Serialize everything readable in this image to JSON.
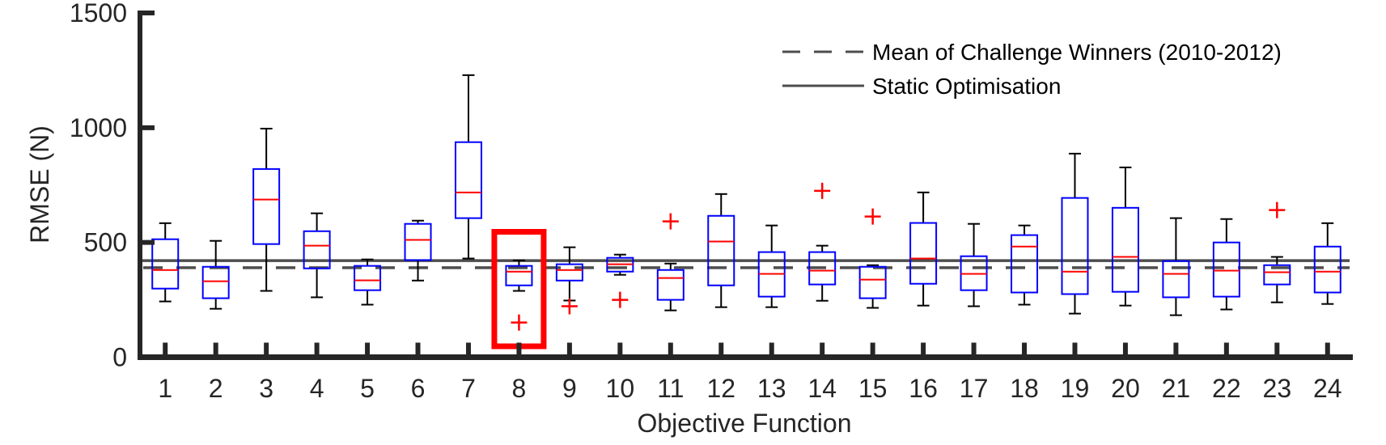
{
  "chart_data": {
    "type": "boxplot",
    "title": "",
    "xlabel": "Objective Function",
    "ylabel": "RMSE (N)",
    "xlim": [
      0.5,
      24.5
    ],
    "ylim": [
      0,
      1500
    ],
    "yticks": [
      0,
      500,
      1000,
      1500
    ],
    "ytick_labels": [
      "0",
      "500",
      "1000",
      "1500"
    ],
    "categories": [
      "1",
      "2",
      "3",
      "4",
      "5",
      "6",
      "7",
      "8",
      "9",
      "10",
      "11",
      "12",
      "13",
      "14",
      "15",
      "16",
      "17",
      "18",
      "19",
      "20",
      "21",
      "22",
      "23",
      "24"
    ],
    "grid": false,
    "legend_position": "top-right",
    "colors": {
      "box": "#0000ff",
      "median": "#ff0000",
      "whisker": "#000000",
      "outlier": "#ff0000",
      "axis": "#262626",
      "reference": "#4d4d4d",
      "highlight": "#ff0000"
    },
    "series": [
      {
        "category": "1",
        "whisker_low": 243,
        "q1": 299,
        "median": 380,
        "q3": 514,
        "whisker_high": 584,
        "outliers": []
      },
      {
        "category": "2",
        "whisker_low": 211,
        "q1": 257,
        "median": 331,
        "q3": 394,
        "whisker_high": 507,
        "outliers": []
      },
      {
        "category": "3",
        "whisker_low": 289,
        "q1": 493,
        "median": 687,
        "q3": 820,
        "whisker_high": 996,
        "outliers": []
      },
      {
        "category": "4",
        "whisker_low": 261,
        "q1": 387,
        "median": 486,
        "q3": 549,
        "whisker_high": 627,
        "outliers": []
      },
      {
        "category": "5",
        "whisker_low": 229,
        "q1": 292,
        "median": 335,
        "q3": 398,
        "whisker_high": 426,
        "outliers": []
      },
      {
        "category": "6",
        "whisker_low": 334,
        "q1": 423,
        "median": 511,
        "q3": 581,
        "whisker_high": 595,
        "outliers": []
      },
      {
        "category": "7",
        "whisker_low": 430,
        "q1": 606,
        "median": 718,
        "q3": 937,
        "whisker_high": 1229,
        "outliers": []
      },
      {
        "category": "8",
        "whisker_low": 289,
        "q1": 313,
        "median": 373,
        "q3": 398,
        "whisker_high": 422,
        "outliers": [
          151
        ]
      },
      {
        "category": "9",
        "whisker_low": 247,
        "q1": 334,
        "median": 380,
        "q3": 405,
        "whisker_high": 479,
        "outliers": [
          222
        ]
      },
      {
        "category": "10",
        "whisker_low": 359,
        "q1": 373,
        "median": 405,
        "q3": 433,
        "whisker_high": 447,
        "outliers": [
          250
        ]
      },
      {
        "category": "11",
        "whisker_low": 204,
        "q1": 250,
        "median": 345,
        "q3": 380,
        "whisker_high": 408,
        "outliers": [
          592
        ]
      },
      {
        "category": "12",
        "whisker_low": 218,
        "q1": 313,
        "median": 504,
        "q3": 616,
        "whisker_high": 711,
        "outliers": []
      },
      {
        "category": "13",
        "whisker_low": 218,
        "q1": 264,
        "median": 363,
        "q3": 458,
        "whisker_high": 574,
        "outliers": []
      },
      {
        "category": "14",
        "whisker_low": 246,
        "q1": 317,
        "median": 377,
        "q3": 458,
        "whisker_high": 486,
        "outliers": [
          725
        ]
      },
      {
        "category": "15",
        "whisker_low": 215,
        "q1": 257,
        "median": 338,
        "q3": 394,
        "whisker_high": 401,
        "outliers": [
          613
        ]
      },
      {
        "category": "16",
        "whisker_low": 225,
        "q1": 320,
        "median": 430,
        "q3": 585,
        "whisker_high": 718,
        "outliers": []
      },
      {
        "category": "17",
        "whisker_low": 222,
        "q1": 292,
        "median": 363,
        "q3": 440,
        "whisker_high": 581,
        "outliers": []
      },
      {
        "category": "18",
        "whisker_low": 229,
        "q1": 282,
        "median": 482,
        "q3": 532,
        "whisker_high": 574,
        "outliers": []
      },
      {
        "category": "19",
        "whisker_low": 190,
        "q1": 275,
        "median": 373,
        "q3": 694,
        "whisker_high": 887,
        "outliers": []
      },
      {
        "category": "20",
        "whisker_low": 225,
        "q1": 285,
        "median": 437,
        "q3": 651,
        "whisker_high": 827,
        "outliers": []
      },
      {
        "category": "21",
        "whisker_low": 183,
        "q1": 261,
        "median": 363,
        "q3": 419,
        "whisker_high": 606,
        "outliers": []
      },
      {
        "category": "22",
        "whisker_low": 208,
        "q1": 264,
        "median": 377,
        "q3": 500,
        "whisker_high": 602,
        "outliers": []
      },
      {
        "category": "23",
        "whisker_low": 239,
        "q1": 317,
        "median": 370,
        "q3": 401,
        "whisker_high": 437,
        "outliers": [
          641
        ]
      },
      {
        "category": "24",
        "whisker_low": 232,
        "q1": 282,
        "median": 373,
        "q3": 482,
        "whisker_high": 584,
        "outliers": []
      }
    ],
    "reference_lines": [
      {
        "name": "Mean of Challenge Winners (2010-2012)",
        "value": 390,
        "style": "dashed"
      },
      {
        "name": "Static Optimisation",
        "value": 421,
        "style": "solid"
      }
    ],
    "legend": [
      {
        "label": "Mean of Challenge Winners (2010-2012)",
        "style": "dashed"
      },
      {
        "label": "Static Optimisation",
        "style": "solid"
      }
    ],
    "annotations": [
      {
        "type": "highlight-rectangle",
        "category": "8",
        "color": "#ff0000",
        "y_range": [
          40,
          560
        ]
      }
    ]
  }
}
